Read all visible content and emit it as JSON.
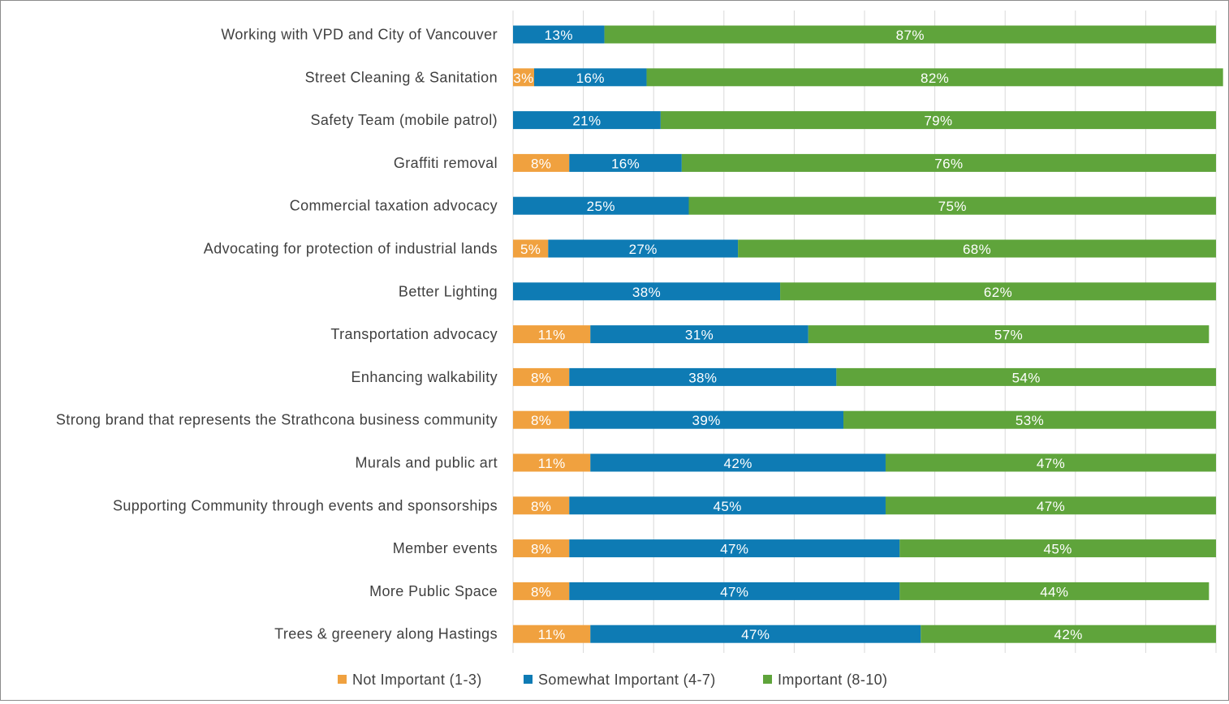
{
  "chart_data": {
    "type": "bar",
    "orientation": "horizontal",
    "stacked": "100%",
    "categories": [
      "Working with VPD and City of Vancouver",
      "Street Cleaning & Sanitation",
      "Safety Team (mobile patrol)",
      "Graffiti removal",
      "Commercial taxation advocacy",
      "Advocating for protection of industrial lands",
      "Better Lighting",
      "Transportation advocacy",
      "Enhancing walkability ",
      "Strong brand that represents the Strathcona business community",
      "Murals and public art",
      "Supporting Community through events and sponsorships",
      "Member events",
      "More Public Space ",
      "Trees & greenery along Hastings"
    ],
    "series": [
      {
        "name": "Not Important (1-3)",
        "color": "#F0A13F",
        "values": [
          0,
          3,
          0,
          8,
          0,
          5,
          0,
          11,
          8,
          8,
          11,
          8,
          8,
          8,
          11
        ],
        "labels": [
          "",
          "3%",
          "",
          "8%",
          "",
          "5%",
          "",
          "11%",
          "8%",
          "8%",
          "11%",
          "8%",
          "8%",
          "8%",
          "11%"
        ]
      },
      {
        "name": "Somewhat Important (4-7)",
        "color": "#0E7BB4",
        "values": [
          13,
          16,
          21,
          16,
          25,
          27,
          38,
          31,
          38,
          39,
          42,
          45,
          47,
          47,
          47
        ],
        "labels": [
          "13%",
          "16%",
          "21%",
          "16%",
          "25%",
          "27%",
          "38%",
          "31%",
          "38%",
          "39%",
          "42%",
          "45%",
          "47%",
          "47%",
          "47%"
        ]
      },
      {
        "name": "Important (8-10)",
        "color": "#5FA43B",
        "values": [
          87,
          82,
          79,
          76,
          75,
          68,
          62,
          57,
          54,
          53,
          47,
          47,
          45,
          44,
          42
        ],
        "labels": [
          "87%",
          "82%",
          "79%",
          "76%",
          "75%",
          "68%",
          "62%",
          "57%",
          "54%",
          "53%",
          "47%",
          "47%",
          "45%",
          "44%",
          "42%"
        ]
      }
    ],
    "xlim": [
      0,
      100
    ],
    "grid": true,
    "legend_position": "bottom"
  }
}
